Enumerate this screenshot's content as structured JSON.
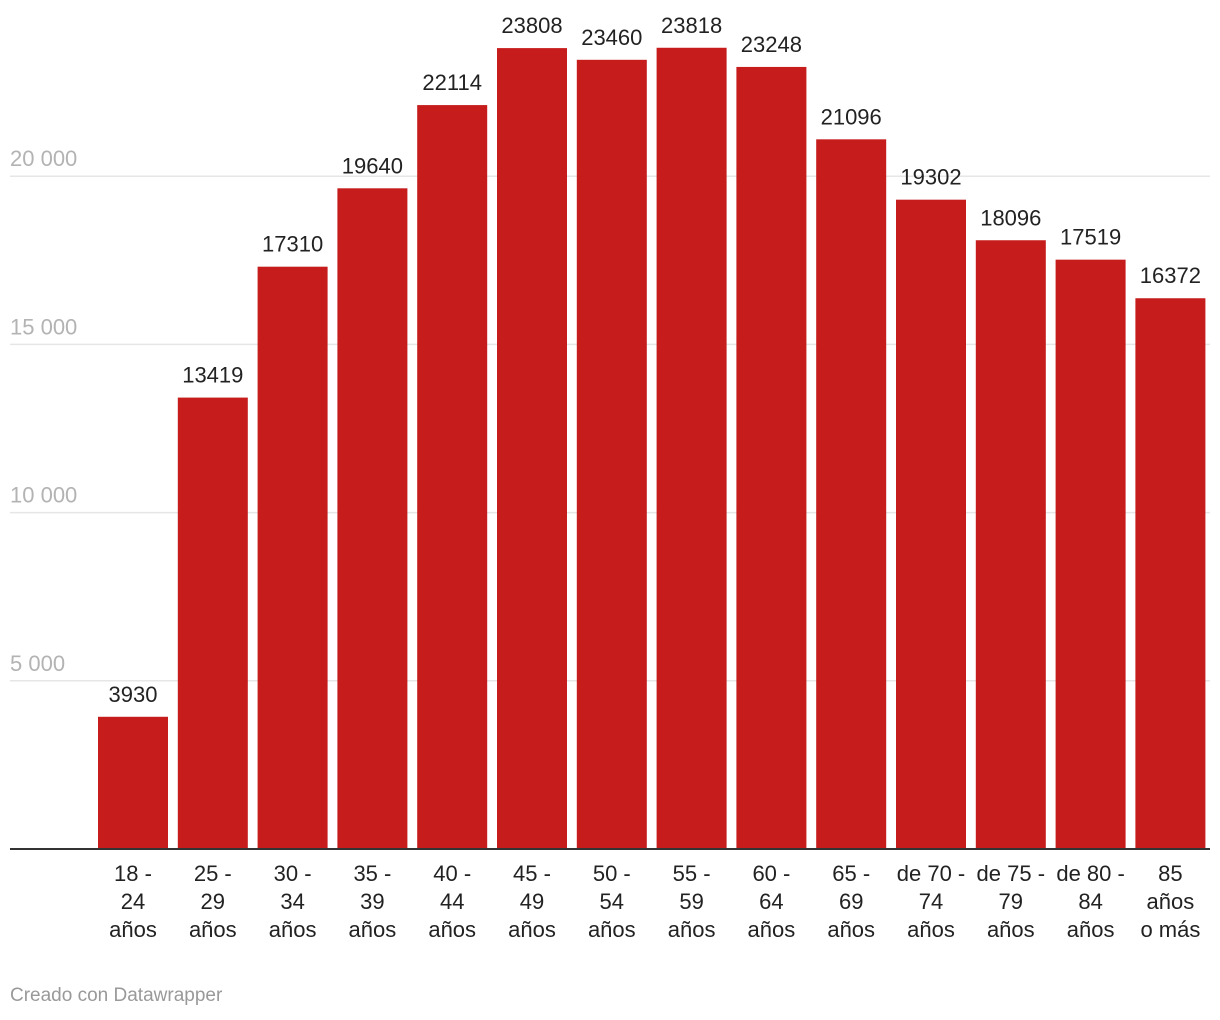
{
  "chart_data": {
    "type": "bar",
    "categories": [
      [
        "18 -",
        "24",
        "años"
      ],
      [
        "25 -",
        "29",
        "años"
      ],
      [
        "30 -",
        "34",
        "años"
      ],
      [
        "35 -",
        "39",
        "años"
      ],
      [
        "40 -",
        "44",
        "años"
      ],
      [
        "45 -",
        "49",
        "años"
      ],
      [
        "50 -",
        "54",
        "años"
      ],
      [
        "55 -",
        "59",
        "años"
      ],
      [
        "60 -",
        "64",
        "años"
      ],
      [
        "65 -",
        "69",
        "años"
      ],
      [
        "de 70 -",
        "74",
        "años"
      ],
      [
        "de 75 -",
        "79",
        "años"
      ],
      [
        "de 80 -",
        "84",
        "años"
      ],
      [
        "85",
        "años",
        "o más"
      ]
    ],
    "values": [
      3930,
      13419,
      17310,
      19640,
      22114,
      23808,
      23460,
      23818,
      23248,
      21096,
      19302,
      18096,
      17519,
      16372
    ],
    "value_labels": [
      "3930",
      "13419",
      "17310",
      "19640",
      "22114",
      "23808",
      "23460",
      "23818",
      "23248",
      "21096",
      "19302",
      "18096",
      "17519",
      "16372"
    ],
    "yticks": [
      5000,
      10000,
      15000,
      20000
    ],
    "ytick_labels": [
      "5 000",
      "10 000",
      "15 000",
      "20 000"
    ],
    "ylim": [
      0,
      25000
    ],
    "title": "",
    "xlabel": "",
    "ylabel": "",
    "bar_color": "#c61c1c",
    "grid": true
  },
  "footer": {
    "credit": "Creado con Datawrapper"
  }
}
